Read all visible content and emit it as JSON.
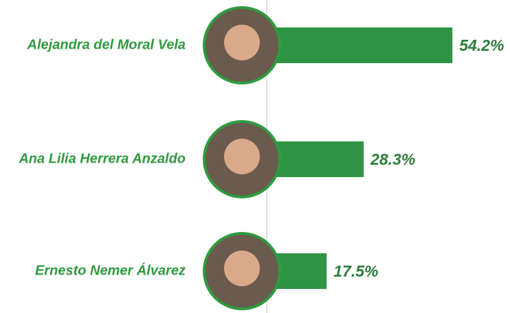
{
  "chart_data": {
    "type": "bar",
    "orientation": "horizontal",
    "categories": [
      "Alejandra del Moral Vela",
      "Ana Lilia Herrera Anzaldo",
      "Ernesto Nemer Álvarez"
    ],
    "values": [
      54.2,
      28.3,
      17.5
    ],
    "value_labels": [
      "54.2%",
      "28.3%",
      "17.5%"
    ],
    "color": "#2e9444",
    "xlim": [
      0,
      70
    ]
  }
}
